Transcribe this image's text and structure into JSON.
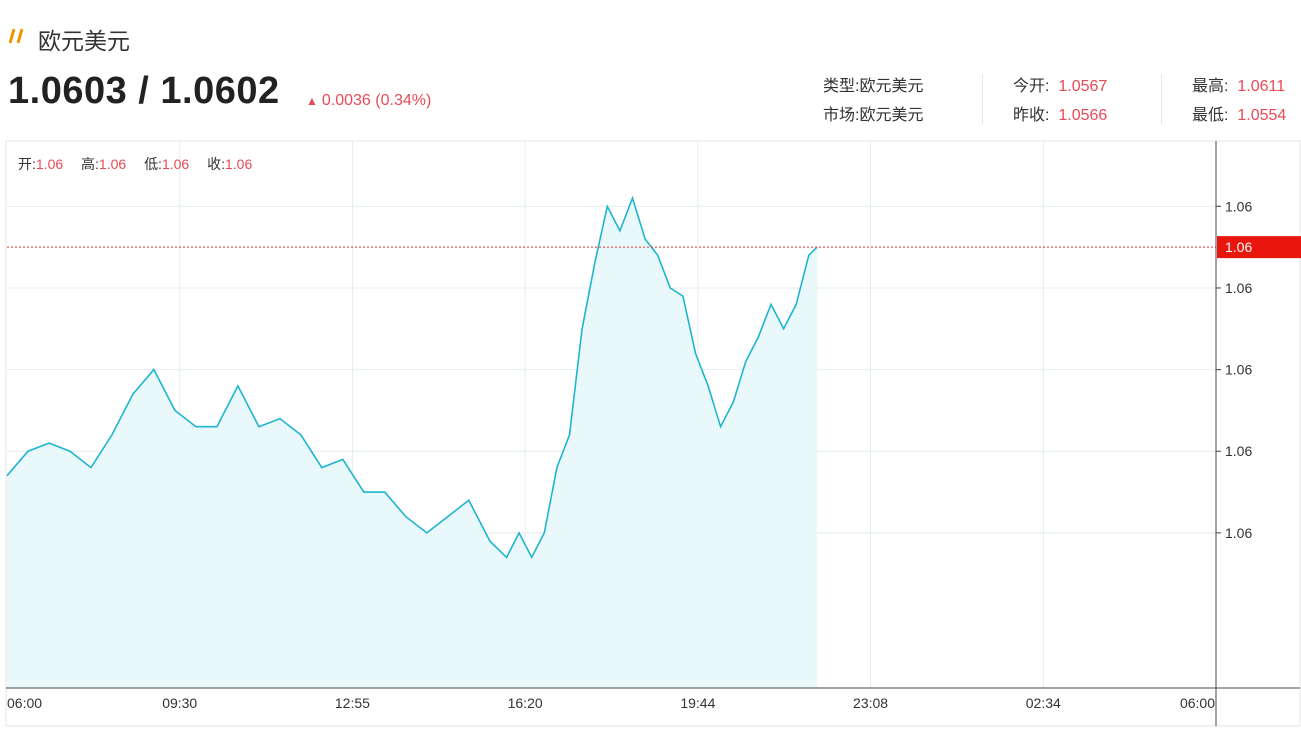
{
  "header": {
    "title": "欧元美元",
    "icon": "double-slash-icon",
    "icon_color": "#f29400"
  },
  "quote": {
    "price": "1.0603 / 1.0602",
    "change": "0.0036 (0.34%)",
    "change_color": "#e84a57"
  },
  "info": {
    "type_label": "类型:",
    "type_value": "欧元美元",
    "market_label": "市场:",
    "market_value": "欧元美元",
    "open_today_label": "今开:",
    "open_today_value": "1.0567",
    "prev_close_label": "昨收:",
    "prev_close_value": "1.0566",
    "high_label": "最高:",
    "high_value": "1.0611",
    "low_label": "最低:",
    "low_value": "1.0554"
  },
  "ohlc": {
    "open_label": "开:",
    "open_value": "1.06",
    "high_label": "高:",
    "high_value": "1.06",
    "low_label": "低:",
    "low_value": "1.06",
    "close_label": "收:",
    "close_value": "1.06"
  },
  "chart_data": {
    "type": "area",
    "line_color": "#1fb5d0",
    "fill_color": "#e9f8fb",
    "current_line_color": "#e8352f",
    "current_value": 1.0603,
    "current_label": "1.06",
    "ylim": [
      1.0549,
      1.0616
    ],
    "y_ticks": [
      {
        "value": 1.0608,
        "label": "1.06"
      },
      {
        "value": 1.0598,
        "label": "1.06"
      },
      {
        "value": 1.0588,
        "label": "1.06"
      },
      {
        "value": 1.0578,
        "label": "1.06"
      },
      {
        "value": 1.0568,
        "label": "1.06"
      }
    ],
    "x_ticks": [
      "06:00",
      "09:30",
      "12:55",
      "16:20",
      "19:44",
      "23:08",
      "02:34",
      "06:00"
    ],
    "grid": true,
    "x": [
      "06:00",
      "06:25",
      "06:50",
      "07:15",
      "07:40",
      "08:05",
      "08:30",
      "08:55",
      "09:20",
      "09:45",
      "10:10",
      "10:35",
      "11:00",
      "11:25",
      "11:50",
      "12:15",
      "12:40",
      "13:05",
      "13:30",
      "13:55",
      "14:20",
      "14:45",
      "15:10",
      "15:35",
      "15:55",
      "16:10",
      "16:25",
      "16:40",
      "16:55",
      "17:10",
      "17:25",
      "17:40",
      "17:55",
      "18:10",
      "18:25",
      "18:40",
      "18:55",
      "19:10",
      "19:25",
      "19:40",
      "19:55",
      "20:10",
      "20:25",
      "20:40",
      "20:55",
      "21:10",
      "21:25",
      "21:40",
      "21:55",
      "22:05"
    ],
    "values": [
      1.0575,
      1.0578,
      1.0579,
      1.0578,
      1.0576,
      1.058,
      1.0585,
      1.0588,
      1.0583,
      1.0581,
      1.0581,
      1.0586,
      1.0581,
      1.0582,
      1.058,
      1.0576,
      1.0577,
      1.0573,
      1.0573,
      1.057,
      1.0568,
      1.057,
      1.0572,
      1.0567,
      1.0565,
      1.0568,
      1.0565,
      1.0568,
      1.0576,
      1.058,
      1.0593,
      1.0601,
      1.0608,
      1.0605,
      1.0609,
      1.0604,
      1.0602,
      1.0598,
      1.0597,
      1.059,
      1.0586,
      1.0581,
      1.0584,
      1.0589,
      1.0592,
      1.0596,
      1.0593,
      1.0596,
      1.0602,
      1.0603
    ]
  }
}
